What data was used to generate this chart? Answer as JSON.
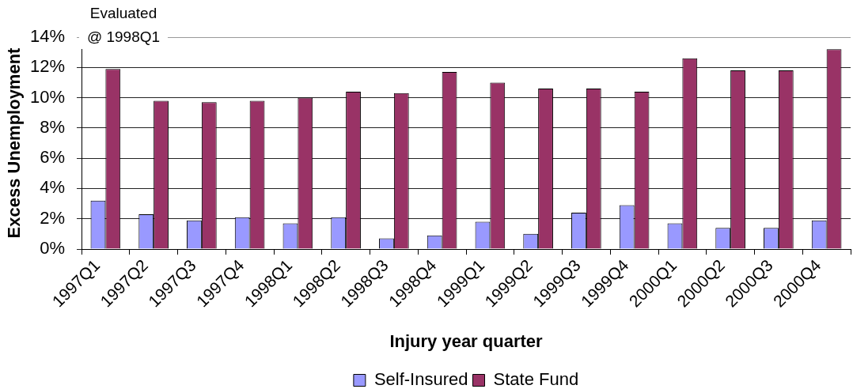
{
  "chart_data": {
    "type": "bar",
    "xlabel": "Injury year quarter",
    "ylabel": "Excess Unemployment",
    "annotations": [
      "Evaluated @ 1998Q1"
    ],
    "categories": [
      "1997Q1",
      "1997Q2",
      "1997Q3",
      "1997Q4",
      "1998Q1",
      "1998Q2",
      "1998Q3",
      "1998Q4",
      "1999Q1",
      "1999Q2",
      "1999Q3",
      "1999Q4",
      "2000Q1",
      "2000Q2",
      "2000Q3",
      "2000Q4"
    ],
    "series": [
      {
        "name": "Self-Insured",
        "color": "#9999ff",
        "values": [
          3.2,
          2.3,
          1.9,
          2.1,
          1.7,
          2.1,
          0.7,
          0.9,
          1.8,
          1.0,
          2.4,
          2.9,
          1.7,
          1.4,
          1.4,
          1.9
        ]
      },
      {
        "name": "State Fund",
        "color": "#993366",
        "values": [
          11.9,
          9.8,
          9.7,
          9.8,
          10.0,
          10.4,
          10.3,
          11.7,
          11.0,
          10.6,
          10.6,
          10.4,
          12.6,
          11.8,
          11.8,
          13.2
        ]
      }
    ],
    "ylim": [
      0,
      14
    ],
    "yticks": [
      {
        "value": 0,
        "label": "0%"
      },
      {
        "value": 2,
        "label": "2%"
      },
      {
        "value": 4,
        "label": "4%"
      },
      {
        "value": 6,
        "label": "6%"
      },
      {
        "value": 8,
        "label": "8%"
      },
      {
        "value": 10,
        "label": "10%"
      },
      {
        "value": 12,
        "label": "12%"
      },
      {
        "value": 14,
        "label": "14%"
      }
    ],
    "grid": "y",
    "legend": "bottom"
  }
}
